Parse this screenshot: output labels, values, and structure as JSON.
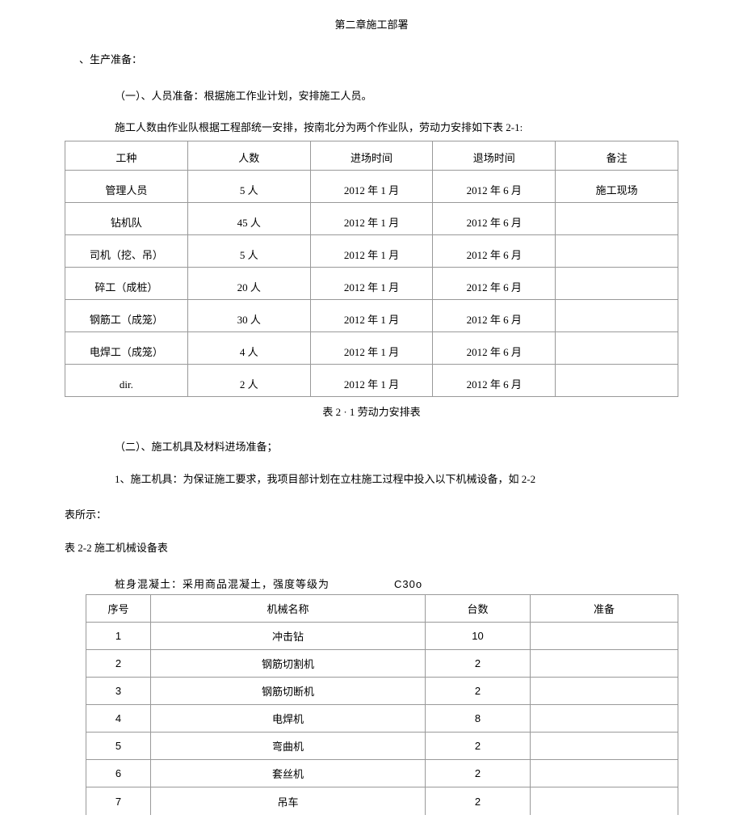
{
  "title": "第二章施工部署",
  "heading1": "、生产准备：",
  "sub1": "（一）、人员准备：根据施工作业计划，安排施工人员。",
  "note1": "施工人数由作业队根据工程部统一安排，按南北分为两个作业队，劳动力安排如下表 2-1:",
  "table1": {
    "headers": [
      "工种",
      "人数",
      "进场时间",
      "退场时间",
      "备注"
    ],
    "rows": [
      [
        "管理人员",
        "5 人",
        "2012 年 1 月",
        "2012 年 6 月",
        "施工现场"
      ],
      [
        "钻机队",
        "45 人",
        "2012 年 1 月",
        "2012 年 6 月",
        ""
      ],
      [
        "司机（挖、吊）",
        "5 人",
        "2012 年 1 月",
        "2012 年 6 月",
        ""
      ],
      [
        "碎工（成桩）",
        "20 人",
        "2012 年 1 月",
        "2012 年 6 月",
        ""
      ],
      [
        "钢筋工（成笼）",
        "30 人",
        "2012 年 1 月",
        "2012 年 6 月",
        ""
      ],
      [
        "电焊工（成笼）",
        "4 人",
        "2012 年 1 月",
        "2012 年 6 月",
        ""
      ],
      [
        "dir.",
        "2 人",
        "2012 年 1 月",
        "2012 年 6 月",
        ""
      ]
    ],
    "caption": "表 2 · 1 劳动力安排表"
  },
  "sub2": "（二）、施工机具及材料进场准备；",
  "para1a": "1、施工机具：为保证施工要求，我项目部计划在立柱施工过程中投入以下机械设备，如 2-2",
  "para1b": "表所示：",
  "table2label": "表 2-2 施工机械设备表",
  "concrete": {
    "prefix": "桩身混凝土：采用商品混凝土，强度等级为",
    "grade": "C30o"
  },
  "table2": {
    "headers": [
      "序号",
      "机械名称",
      "台数",
      "准备"
    ],
    "rows": [
      [
        "1",
        "冲击钻",
        "10",
        ""
      ],
      [
        "2",
        "钢筋切割机",
        "2",
        ""
      ],
      [
        "3",
        "钢筋切断机",
        "2",
        ""
      ],
      [
        "4",
        "电焊机",
        "8",
        ""
      ],
      [
        "5",
        "弯曲机",
        "2",
        ""
      ],
      [
        "6",
        "套丝机",
        "2",
        ""
      ],
      [
        "7",
        "吊车",
        "2",
        ""
      ]
    ]
  }
}
